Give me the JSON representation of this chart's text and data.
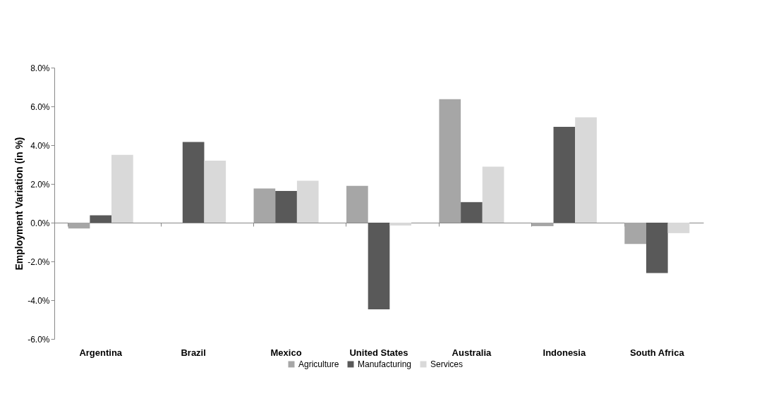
{
  "chart_data": {
    "type": "bar",
    "ylabel": "Employment Variation (in %)",
    "categories": [
      "Argentina",
      "Brazil",
      "Mexico",
      "United States",
      "Australia",
      "Indonesia",
      "South Africa"
    ],
    "series": [
      {
        "name": "Agriculture",
        "color": "#a6a6a6",
        "values": [
          -0.3,
          0,
          1.76,
          1.9,
          6.37,
          -0.18,
          -1.1
        ]
      },
      {
        "name": "Manufacturing",
        "color": "#595959",
        "values": [
          0.38,
          4.16,
          1.64,
          -4.47,
          1.06,
          4.95,
          -2.6
        ]
      },
      {
        "name": "Services",
        "color": "#d9d9d9",
        "values": [
          3.5,
          3.2,
          2.16,
          -0.15,
          2.89,
          5.44,
          -0.54
        ]
      }
    ],
    "ylim": [
      -6,
      8
    ],
    "yticks": [
      {
        "value": -6,
        "label": "-6.0%"
      },
      {
        "value": -4,
        "label": "-4.0%"
      },
      {
        "value": -2,
        "label": "-2.0%"
      },
      {
        "value": 0,
        "label": "0.0%"
      },
      {
        "value": 2,
        "label": "2.0%"
      },
      {
        "value": 4,
        "label": "4.0%"
      },
      {
        "value": 6,
        "label": "6.0%"
      },
      {
        "value": 8,
        "label": "8.0%"
      }
    ],
    "legend": "bottom"
  }
}
